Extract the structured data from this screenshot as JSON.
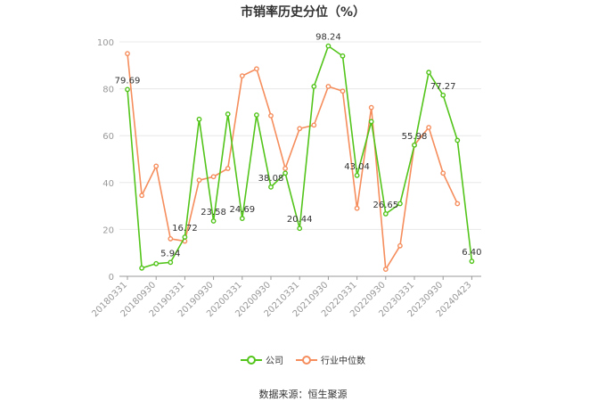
{
  "chart_data": {
    "type": "line",
    "title": "市销率历史分位（%）",
    "xlabel": "",
    "ylabel": "",
    "ylim": [
      0,
      100
    ],
    "yticks": [
      0,
      20,
      40,
      60,
      80,
      100
    ],
    "grid": true,
    "legend_position": "bottom",
    "x_tick_labels": [
      "20180331",
      "20180930",
      "20190331",
      "20190930",
      "20200331",
      "20200930",
      "20210331",
      "20210930",
      "20220331",
      "20220930",
      "20230331",
      "20230930",
      "20240423"
    ],
    "series": [
      {
        "name": "公司",
        "color": "#52c41a",
        "values": [
          79.69,
          3.5,
          5.4,
          5.94,
          16.72,
          67,
          23.58,
          69.2,
          24.69,
          68.8,
          38.08,
          44,
          20.44,
          81,
          98.24,
          94,
          43.04,
          66,
          26.65,
          31,
          55.98,
          87,
          77.27,
          58,
          6.4
        ]
      },
      {
        "name": "行业中位数",
        "color": "#f58d5c",
        "values": [
          95,
          34.5,
          47,
          16,
          15,
          41,
          42.5,
          46,
          85.5,
          88.5,
          68.5,
          46,
          63,
          64.5,
          81,
          79,
          29,
          72,
          3,
          13,
          56,
          63.5,
          44,
          31
        ]
      }
    ],
    "data_labels": [
      {
        "index": 0,
        "text": "79.69"
      },
      {
        "index": 3,
        "text": "5.94"
      },
      {
        "index": 4,
        "text": "16.72"
      },
      {
        "index": 6,
        "text": "23.58"
      },
      {
        "index": 8,
        "text": "24.69"
      },
      {
        "index": 10,
        "text": "38.08"
      },
      {
        "index": 12,
        "text": "20.44"
      },
      {
        "index": 14,
        "text": "98.24"
      },
      {
        "index": 16,
        "text": "43.04"
      },
      {
        "index": 18,
        "text": "26.65"
      },
      {
        "index": 20,
        "text": "55.98"
      },
      {
        "index": 22,
        "text": "77.27"
      },
      {
        "index": 24,
        "text": "6.40"
      }
    ]
  },
  "legend": {
    "company_label": "公司",
    "industry_label": "行业中位数"
  },
  "source": "数据来源：恒生聚源"
}
